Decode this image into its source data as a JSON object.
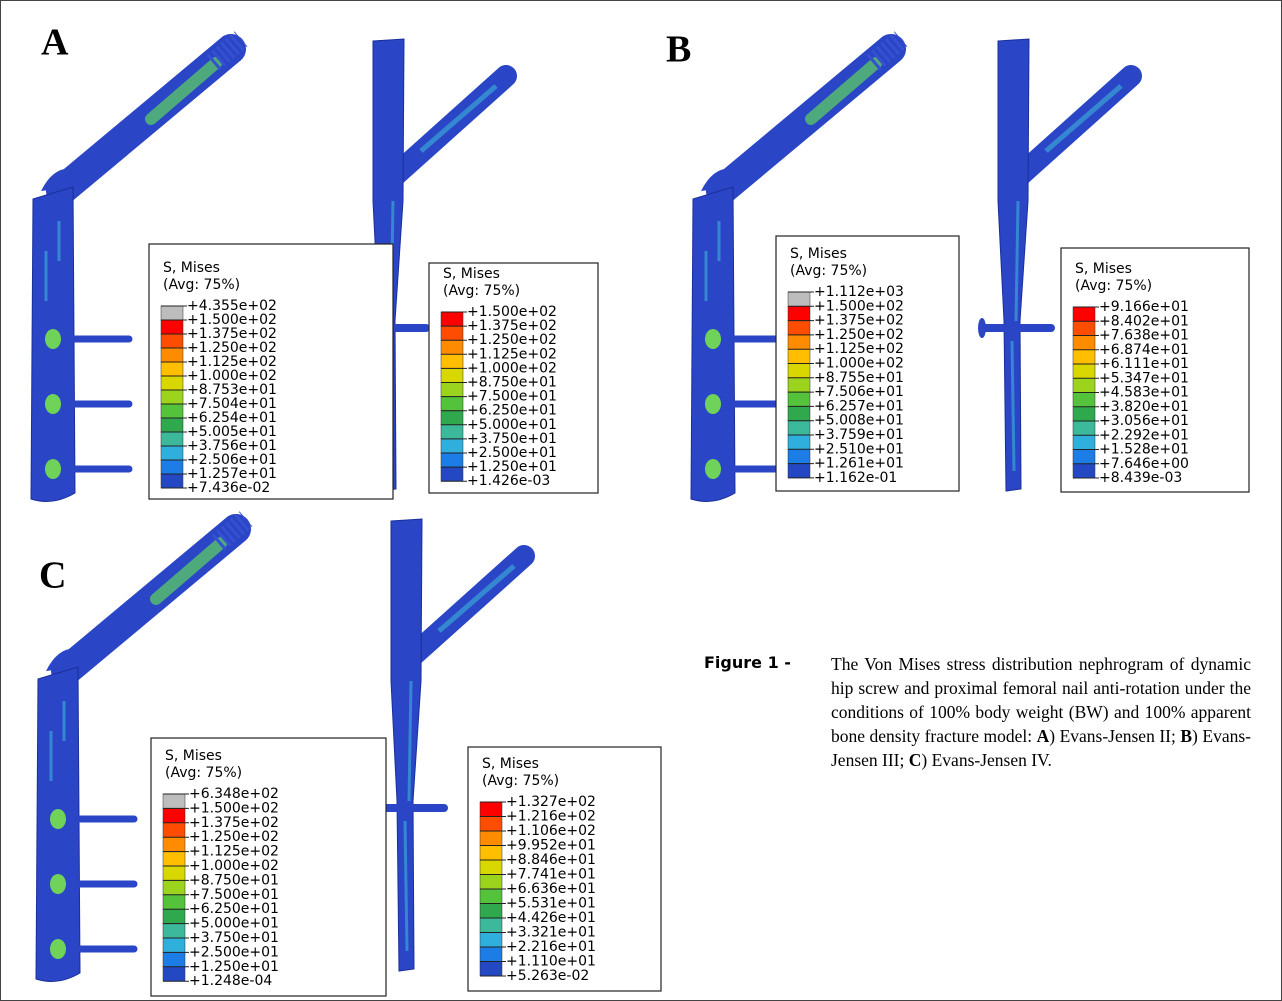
{
  "panels": [
    {
      "label": "A",
      "legends": [
        {
          "title": "S, Mises",
          "subtitle": "(Avg: 75%)",
          "values": [
            "+4.355e+02",
            "+1.500e+02",
            "+1.375e+02",
            "+1.250e+02",
            "+1.125e+02",
            "+1.000e+02",
            "+8.753e+01",
            "+7.504e+01",
            "+6.254e+01",
            "+5.005e+01",
            "+3.756e+01",
            "+2.506e+01",
            "+1.257e+01",
            "+7.436e-02"
          ]
        },
        {
          "title": "S, Mises",
          "subtitle": "(Avg: 75%)",
          "values": [
            "+1.500e+02",
            "+1.375e+02",
            "+1.250e+02",
            "+1.125e+02",
            "+1.000e+02",
            "+8.750e+01",
            "+7.500e+01",
            "+6.250e+01",
            "+5.000e+01",
            "+3.750e+01",
            "+2.500e+01",
            "+1.250e+01",
            "+1.426e-03"
          ]
        }
      ]
    },
    {
      "label": "B",
      "legends": [
        {
          "title": "S, Mises",
          "subtitle": "(Avg: 75%)",
          "values": [
            "+1.112e+03",
            "+1.500e+02",
            "+1.375e+02",
            "+1.250e+02",
            "+1.125e+02",
            "+1.000e+02",
            "+8.755e+01",
            "+7.506e+01",
            "+6.257e+01",
            "+5.008e+01",
            "+3.759e+01",
            "+2.510e+01",
            "+1.261e+01",
            "+1.162e-01"
          ]
        },
        {
          "title": "S, Mises",
          "subtitle": "(Avg: 75%)",
          "values": [
            "+9.166e+01",
            "+8.402e+01",
            "+7.638e+01",
            "+6.874e+01",
            "+6.111e+01",
            "+5.347e+01",
            "+4.583e+01",
            "+3.820e+01",
            "+3.056e+01",
            "+2.292e+01",
            "+1.528e+01",
            "+7.646e+00",
            "+8.439e-03"
          ]
        }
      ]
    },
    {
      "label": "C",
      "legends": [
        {
          "title": "S, Mises",
          "subtitle": "(Avg: 75%)",
          "values": [
            "+6.348e+02",
            "+1.500e+02",
            "+1.375e+02",
            "+1.250e+02",
            "+1.125e+02",
            "+1.000e+02",
            "+8.750e+01",
            "+7.500e+01",
            "+6.250e+01",
            "+5.000e+01",
            "+3.750e+01",
            "+2.500e+01",
            "+1.250e+01",
            "+1.248e-04"
          ]
        },
        {
          "title": "S, Mises",
          "subtitle": "(Avg: 75%)",
          "values": [
            "+1.327e+02",
            "+1.216e+02",
            "+1.106e+02",
            "+9.952e+01",
            "+8.846e+01",
            "+7.741e+01",
            "+6.636e+01",
            "+5.531e+01",
            "+4.426e+01",
            "+3.321e+01",
            "+2.216e+01",
            "+1.110e+01",
            "+5.263e-02"
          ]
        }
      ]
    }
  ],
  "caption": {
    "label": "Figure 1 -",
    "parts": [
      "The Von Mises stress distribution nephrogram of dynamic hip screw and proximal femoral nail anti-rotation under the conditions of 100% body weight (BW) and 100% apparent bone density fracture model: ",
      "A",
      ") Evans-Jensen II; ",
      "B",
      ") Evans-Jensen III; ",
      "C",
      ") Evans-Jensen IV."
    ]
  }
}
